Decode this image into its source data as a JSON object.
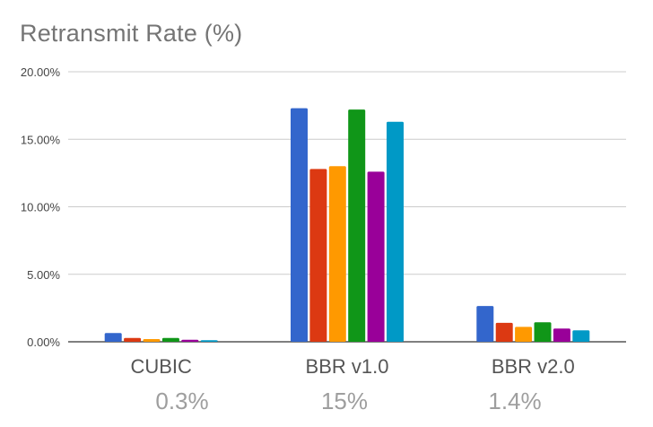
{
  "chart_data": {
    "type": "bar",
    "title": "Retransmit Rate (%)",
    "xlabel": "",
    "ylabel": "",
    "ylim": [
      0,
      20
    ],
    "y_ticks": [
      "0.00%",
      "5.00%",
      "10.00%",
      "15.00%",
      "20.00%"
    ],
    "y_tick_values": [
      0,
      5,
      10,
      15,
      20
    ],
    "grid": true,
    "legend": "none",
    "categories": [
      "CUBIC",
      "BBR v1.0",
      "BBR v2.0"
    ],
    "summary_labels": [
      "0.3%",
      "15%",
      "1.4%"
    ],
    "colors": [
      "#3366cc",
      "#dc3912",
      "#ff9900",
      "#109618",
      "#990099",
      "#0099c6"
    ],
    "series": [
      {
        "values": [
          0.65,
          17.3,
          2.65
        ]
      },
      {
        "values": [
          0.28,
          12.8,
          1.4
        ]
      },
      {
        "values": [
          0.2,
          13.0,
          1.1
        ]
      },
      {
        "values": [
          0.28,
          17.2,
          1.45
        ]
      },
      {
        "values": [
          0.15,
          12.6,
          0.98
        ]
      },
      {
        "values": [
          0.12,
          16.3,
          0.85
        ]
      }
    ]
  }
}
